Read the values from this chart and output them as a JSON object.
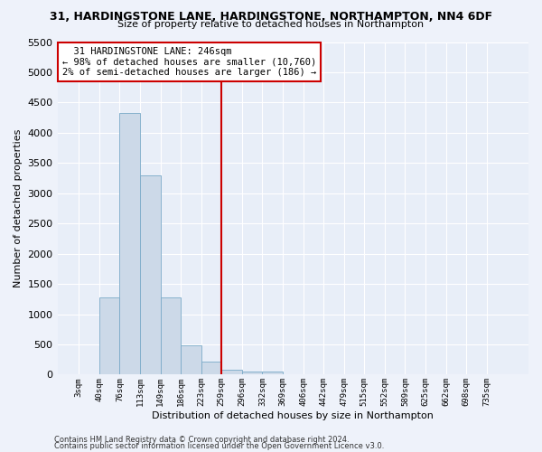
{
  "title": "31, HARDINGSTONE LANE, HARDINGSTONE, NORTHAMPTON, NN4 6DF",
  "subtitle": "Size of property relative to detached houses in Northampton",
  "xlabel": "Distribution of detached houses by size in Northampton",
  "ylabel": "Number of detached properties",
  "bar_color": "#ccd9e8",
  "bar_edge_color": "#7aaac8",
  "background_color": "#e8eef8",
  "grid_color": "#ffffff",
  "categories": [
    "3sqm",
    "40sqm",
    "76sqm",
    "113sqm",
    "149sqm",
    "186sqm",
    "223sqm",
    "259sqm",
    "296sqm",
    "332sqm",
    "369sqm",
    "406sqm",
    "442sqm",
    "479sqm",
    "515sqm",
    "552sqm",
    "589sqm",
    "625sqm",
    "662sqm",
    "698sqm",
    "735sqm"
  ],
  "values": [
    0,
    1270,
    4330,
    3300,
    1280,
    490,
    215,
    85,
    55,
    55,
    0,
    0,
    0,
    0,
    0,
    0,
    0,
    0,
    0,
    0,
    0
  ],
  "annotation_line1": "  31 HARDINGSTONE LANE: 246sqm",
  "annotation_line2": "← 98% of detached houses are smaller (10,760)",
  "annotation_line3": "2% of semi-detached houses are larger (186) →",
  "annotation_box_color": "#ffffff",
  "annotation_border_color": "#cc0000",
  "vline_color": "#cc0000",
  "ylim": [
    0,
    5500
  ],
  "yticks": [
    0,
    500,
    1000,
    1500,
    2000,
    2500,
    3000,
    3500,
    4000,
    4500,
    5000,
    5500
  ],
  "footnote1": "Contains HM Land Registry data © Crown copyright and database right 2024.",
  "footnote2": "Contains public sector information licensed under the Open Government Licence v3.0.",
  "prop_sqm": 246,
  "bin_width": 37
}
